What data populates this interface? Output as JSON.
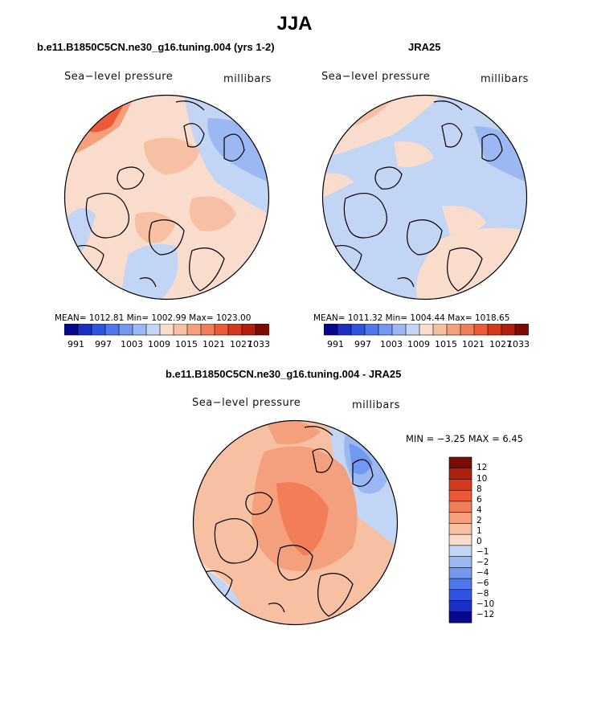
{
  "page": {
    "title": "JJA"
  },
  "panels": {
    "model": {
      "title": "b.e11.B1850C5CN.ne30_g16.tuning.004 (yrs 1-2)",
      "variable": "Sea−level pressure",
      "units": "millibars",
      "stats": "MEAN= 1012.81   Min= 1002.99   Max= 1023.00"
    },
    "obs": {
      "title": "JRA25",
      "variable": "Sea−level pressure",
      "units": "millibars",
      "stats": "MEAN= 1011.32   Min= 1004.44   Max= 1018.65"
    },
    "diff": {
      "title": "b.e11.B1850C5CN.ne30_g16.tuning.004 - JRA25",
      "variable": "Sea−level pressure",
      "units": "millibars",
      "stats": "MIN =   −3.25  MAX =    6.45"
    }
  },
  "chart_data": [
    {
      "type": "heatmap",
      "title": "b.e11.B1850C5CN.ne30_g16.tuning.004 (yrs 1-2)",
      "projection": "polar stereographic, north pole",
      "colorbar_ticks": [
        "991",
        "997",
        "1003",
        "1009",
        "1015",
        "1021",
        "1027",
        "1033"
      ],
      "colorbar_levels": [
        991,
        994,
        997,
        1000,
        1003,
        1006,
        1009,
        1012,
        1015,
        1018,
        1021,
        1024,
        1027,
        1030,
        1033
      ],
      "colors": [
        "#08088a",
        "#1a2fc4",
        "#2f55e0",
        "#4f78ea",
        "#7398ef",
        "#9cb8f2",
        "#c3d5f5",
        "#f9dccb",
        "#f7c0a3",
        "#f5a07c",
        "#f27e57",
        "#ee5a35",
        "#d63a1c",
        "#b0200f",
        "#7a0c04"
      ],
      "mean": 1012.81,
      "min": 1002.99,
      "max": 1023.0
    },
    {
      "type": "heatmap",
      "title": "JRA25",
      "projection": "polar stereographic, north pole",
      "colorbar_ticks": [
        "991",
        "997",
        "1003",
        "1009",
        "1015",
        "1021",
        "1027",
        "1033"
      ],
      "colorbar_levels": [
        991,
        994,
        997,
        1000,
        1003,
        1006,
        1009,
        1012,
        1015,
        1018,
        1021,
        1024,
        1027,
        1030,
        1033
      ],
      "mean": 1011.32,
      "min": 1004.44,
      "max": 1018.65
    },
    {
      "type": "heatmap",
      "title": "b.e11.B1850C5CN.ne30_g16.tuning.004 - JRA25",
      "projection": "polar stereographic, north pole",
      "colorbar_ticks": [
        "12",
        "10",
        "8",
        "6",
        "4",
        "2",
        "1",
        "0",
        "−1",
        "−2",
        "−4",
        "−6",
        "−8",
        "−10",
        "−12"
      ],
      "colorbar_levels": [
        12,
        10,
        8,
        6,
        4,
        2,
        1,
        0,
        -1,
        -2,
        -4,
        -6,
        -8,
        -10,
        -12
      ],
      "colors": [
        "#7a0c04",
        "#b0200f",
        "#d63a1c",
        "#ee5a35",
        "#f27e57",
        "#f5a07c",
        "#f7c0a3",
        "#f9dccb",
        "#c3d5f5",
        "#9cb8f2",
        "#7398ef",
        "#4f78ea",
        "#2f55e0",
        "#1a2fc4",
        "#08088a"
      ],
      "min": -3.25,
      "max": 6.45
    }
  ]
}
